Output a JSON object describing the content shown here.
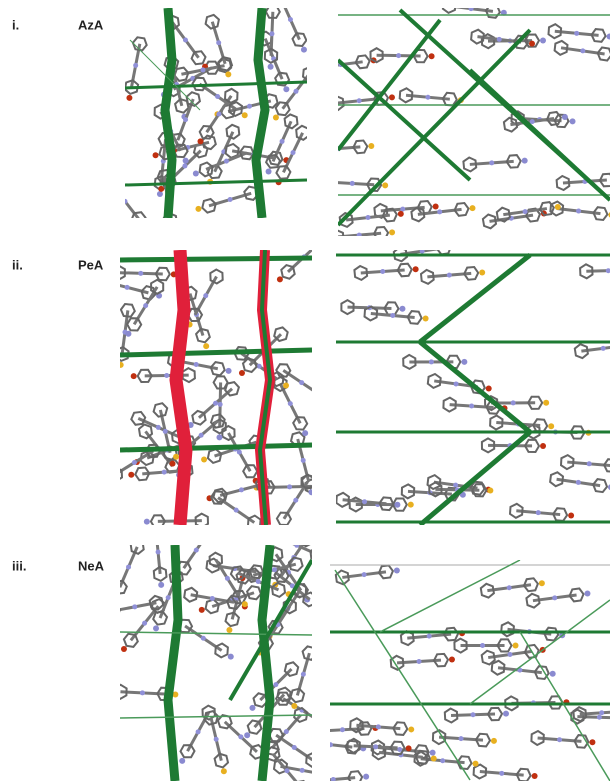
{
  "panels": [
    {
      "index": "i.",
      "name": "AzA"
    },
    {
      "index": "ii.",
      "name": "PeA"
    },
    {
      "index": "iii.",
      "name": "NeA"
    }
  ]
}
